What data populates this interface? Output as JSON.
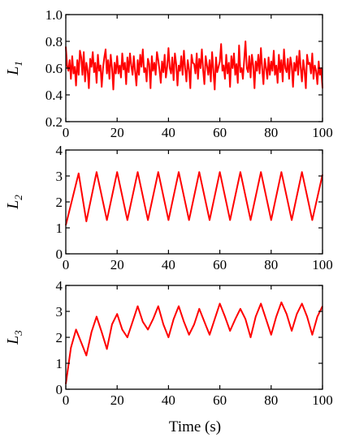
{
  "chart_data": [
    {
      "type": "line",
      "ylabel": "L",
      "ylabel_sub": "1",
      "xlabel": "",
      "xlim": [
        0,
        100
      ],
      "ylim": [
        0.2,
        1.0
      ],
      "xticks": [
        0,
        20,
        40,
        60,
        80,
        100
      ],
      "yticks": [
        0.2,
        0.4,
        0.6,
        0.8,
        1.0
      ],
      "ytick_labels": [
        "0.2",
        "0.4",
        "0.6",
        "0.8",
        "1.0"
      ],
      "grid": false,
      "series": [
        {
          "color": "#ff0000",
          "x": [
            0,
            0.5,
            1,
            1.5,
            2,
            2.5,
            3,
            3.5,
            4,
            4.5,
            5,
            5.5,
            6,
            6.5,
            7,
            7.5,
            8,
            8.5,
            9,
            9.5,
            10,
            10.5,
            11,
            11.5,
            12,
            12.5,
            13,
            13.5,
            14,
            14.5,
            15,
            15.5,
            16,
            16.5,
            17,
            17.5,
            18,
            18.5,
            19,
            19.5,
            20,
            20.5,
            21,
            21.5,
            22,
            22.5,
            23,
            23.5,
            24,
            24.5,
            25,
            25.5,
            26,
            26.5,
            27,
            27.5,
            28,
            28.5,
            29,
            29.5,
            30,
            30.5,
            31,
            31.5,
            32,
            32.5,
            33,
            33.5,
            34,
            34.5,
            35,
            35.5,
            36,
            36.5,
            37,
            37.5,
            38,
            38.5,
            39,
            39.5,
            40,
            40.5,
            41,
            41.5,
            42,
            42.5,
            43,
            43.5,
            44,
            44.5,
            45,
            45.5,
            46,
            46.5,
            47,
            47.5,
            48,
            48.5,
            49,
            49.5,
            50,
            50.5,
            51,
            51.5,
            52,
            52.5,
            53,
            53.5,
            54,
            54.5,
            55,
            55.5,
            56,
            56.5,
            57,
            57.5,
            58,
            58.5,
            59,
            59.5,
            60,
            60.5,
            61,
            61.5,
            62,
            62.5,
            63,
            63.5,
            64,
            64.5,
            65,
            65.5,
            66,
            66.5,
            67,
            67.5,
            68,
            68.5,
            69,
            69.5,
            70,
            70.5,
            71,
            71.5,
            72,
            72.5,
            73,
            73.5,
            74,
            74.5,
            75,
            75.5,
            76,
            76.5,
            77,
            77.5,
            78,
            78.5,
            79,
            79.5,
            80,
            80.5,
            81,
            81.5,
            82,
            82.5,
            83,
            83.5,
            84,
            84.5,
            85,
            85.5,
            86,
            86.5,
            87,
            87.5,
            88,
            88.5,
            89,
            89.5,
            90,
            90.5,
            91,
            91.5,
            92,
            92.5,
            93,
            93.5,
            94,
            94.5,
            95,
            95.5,
            96,
            96.5,
            97,
            97.5,
            98,
            98.5,
            99,
            99.5,
            100
          ],
          "y": [
            0.76,
            0.62,
            0.58,
            0.66,
            0.52,
            0.69,
            0.56,
            0.61,
            0.47,
            0.66,
            0.55,
            0.73,
            0.68,
            0.55,
            0.72,
            0.5,
            0.64,
            0.58,
            0.45,
            0.67,
            0.61,
            0.72,
            0.57,
            0.64,
            0.49,
            0.7,
            0.58,
            0.62,
            0.46,
            0.6,
            0.68,
            0.74,
            0.56,
            0.66,
            0.52,
            0.7,
            0.6,
            0.44,
            0.64,
            0.56,
            0.69,
            0.56,
            0.62,
            0.53,
            0.71,
            0.59,
            0.64,
            0.48,
            0.68,
            0.57,
            0.71,
            0.62,
            0.55,
            0.69,
            0.58,
            0.47,
            0.66,
            0.55,
            0.7,
            0.61,
            0.74,
            0.57,
            0.6,
            0.5,
            0.67,
            0.63,
            0.45,
            0.69,
            0.58,
            0.64,
            0.55,
            0.72,
            0.66,
            0.59,
            0.49,
            0.65,
            0.57,
            0.7,
            0.53,
            0.61,
            0.75,
            0.6,
            0.56,
            0.68,
            0.51,
            0.71,
            0.63,
            0.47,
            0.62,
            0.58,
            0.69,
            0.55,
            0.73,
            0.6,
            0.5,
            0.66,
            0.59,
            0.45,
            0.7,
            0.64,
            0.63,
            0.56,
            0.71,
            0.52,
            0.67,
            0.6,
            0.74,
            0.58,
            0.48,
            0.69,
            0.62,
            0.55,
            0.66,
            0.5,
            0.72,
            0.58,
            0.44,
            0.68,
            0.57,
            0.61,
            0.65,
            0.78,
            0.58,
            0.62,
            0.52,
            0.7,
            0.56,
            0.64,
            0.46,
            0.69,
            0.6,
            0.71,
            0.55,
            0.63,
            0.49,
            0.77,
            0.57,
            0.6,
            0.52,
            0.66,
            0.8,
            0.6,
            0.57,
            0.69,
            0.53,
            0.7,
            0.62,
            0.45,
            0.65,
            0.58,
            0.7,
            0.56,
            0.75,
            0.6,
            0.48,
            0.67,
            0.6,
            0.52,
            0.68,
            0.55,
            0.65,
            0.58,
            0.73,
            0.55,
            0.62,
            0.49,
            0.7,
            0.57,
            0.66,
            0.5,
            0.74,
            0.6,
            0.57,
            0.67,
            0.52,
            0.68,
            0.62,
            0.46,
            0.64,
            0.58,
            0.69,
            0.55,
            0.73,
            0.61,
            0.5,
            0.66,
            0.58,
            0.45,
            0.7,
            0.63,
            0.64,
            0.56,
            0.71,
            0.52,
            0.62,
            0.58,
            0.48,
            0.65,
            0.55,
            0.6,
            0.45
          ]
        }
      ]
    },
    {
      "type": "line",
      "ylabel": "L",
      "ylabel_sub": "2",
      "xlabel": "",
      "xlim": [
        0,
        100
      ],
      "ylim": [
        0,
        4
      ],
      "xticks": [
        0,
        20,
        40,
        60,
        80,
        100
      ],
      "yticks": [
        0,
        1,
        2,
        3,
        4
      ],
      "ytick_labels": [
        "0",
        "1",
        "2",
        "3",
        "4"
      ],
      "grid": false,
      "series": [
        {
          "color": "#ff0000",
          "x": [
            0,
            5,
            8,
            12,
            16,
            20,
            24,
            28,
            32,
            36,
            40,
            44,
            48,
            52,
            56,
            60,
            64,
            68,
            72,
            76,
            80,
            84,
            88,
            92,
            96,
            100
          ],
          "y": [
            1.1,
            3.1,
            1.25,
            3.15,
            1.3,
            3.15,
            1.3,
            3.15,
            1.3,
            3.15,
            1.3,
            3.15,
            1.3,
            3.15,
            1.3,
            3.15,
            1.3,
            3.15,
            1.3,
            3.15,
            1.3,
            3.15,
            1.3,
            3.15,
            1.3,
            3.05
          ]
        }
      ]
    },
    {
      "type": "line",
      "ylabel": "L",
      "ylabel_sub": "3",
      "xlabel": "Time (s)",
      "xlim": [
        0,
        100
      ],
      "ylim": [
        0,
        4
      ],
      "xticks": [
        0,
        20,
        40,
        60,
        80,
        100
      ],
      "yticks": [
        0,
        1,
        2,
        3,
        4
      ],
      "ytick_labels": [
        "0",
        "1",
        "2",
        "3",
        "4"
      ],
      "grid": false,
      "series": [
        {
          "color": "#ff0000",
          "x": [
            0,
            2,
            4,
            6,
            8,
            10,
            12,
            14,
            16,
            18,
            20,
            22,
            24,
            26,
            28,
            30,
            32,
            34,
            36,
            38,
            40,
            42,
            44,
            46,
            48,
            50,
            52,
            54,
            56,
            58,
            60,
            62,
            64,
            66,
            68,
            70,
            72,
            74,
            76,
            78,
            80,
            82,
            84,
            86,
            88,
            90,
            92,
            94,
            96,
            98,
            100
          ],
          "y": [
            0.2,
            1.6,
            2.3,
            1.8,
            1.3,
            2.2,
            2.8,
            2.2,
            1.55,
            2.5,
            2.9,
            2.3,
            2.0,
            2.6,
            3.2,
            2.6,
            2.3,
            2.7,
            3.2,
            2.5,
            2.0,
            2.7,
            3.2,
            2.6,
            2.1,
            2.5,
            3.1,
            2.6,
            2.1,
            2.7,
            3.3,
            2.8,
            2.25,
            2.7,
            3.1,
            2.7,
            2.0,
            2.8,
            3.3,
            2.7,
            2.1,
            2.8,
            3.35,
            2.9,
            2.25,
            2.9,
            3.3,
            2.8,
            2.1,
            2.8,
            3.2
          ]
        }
      ]
    }
  ]
}
